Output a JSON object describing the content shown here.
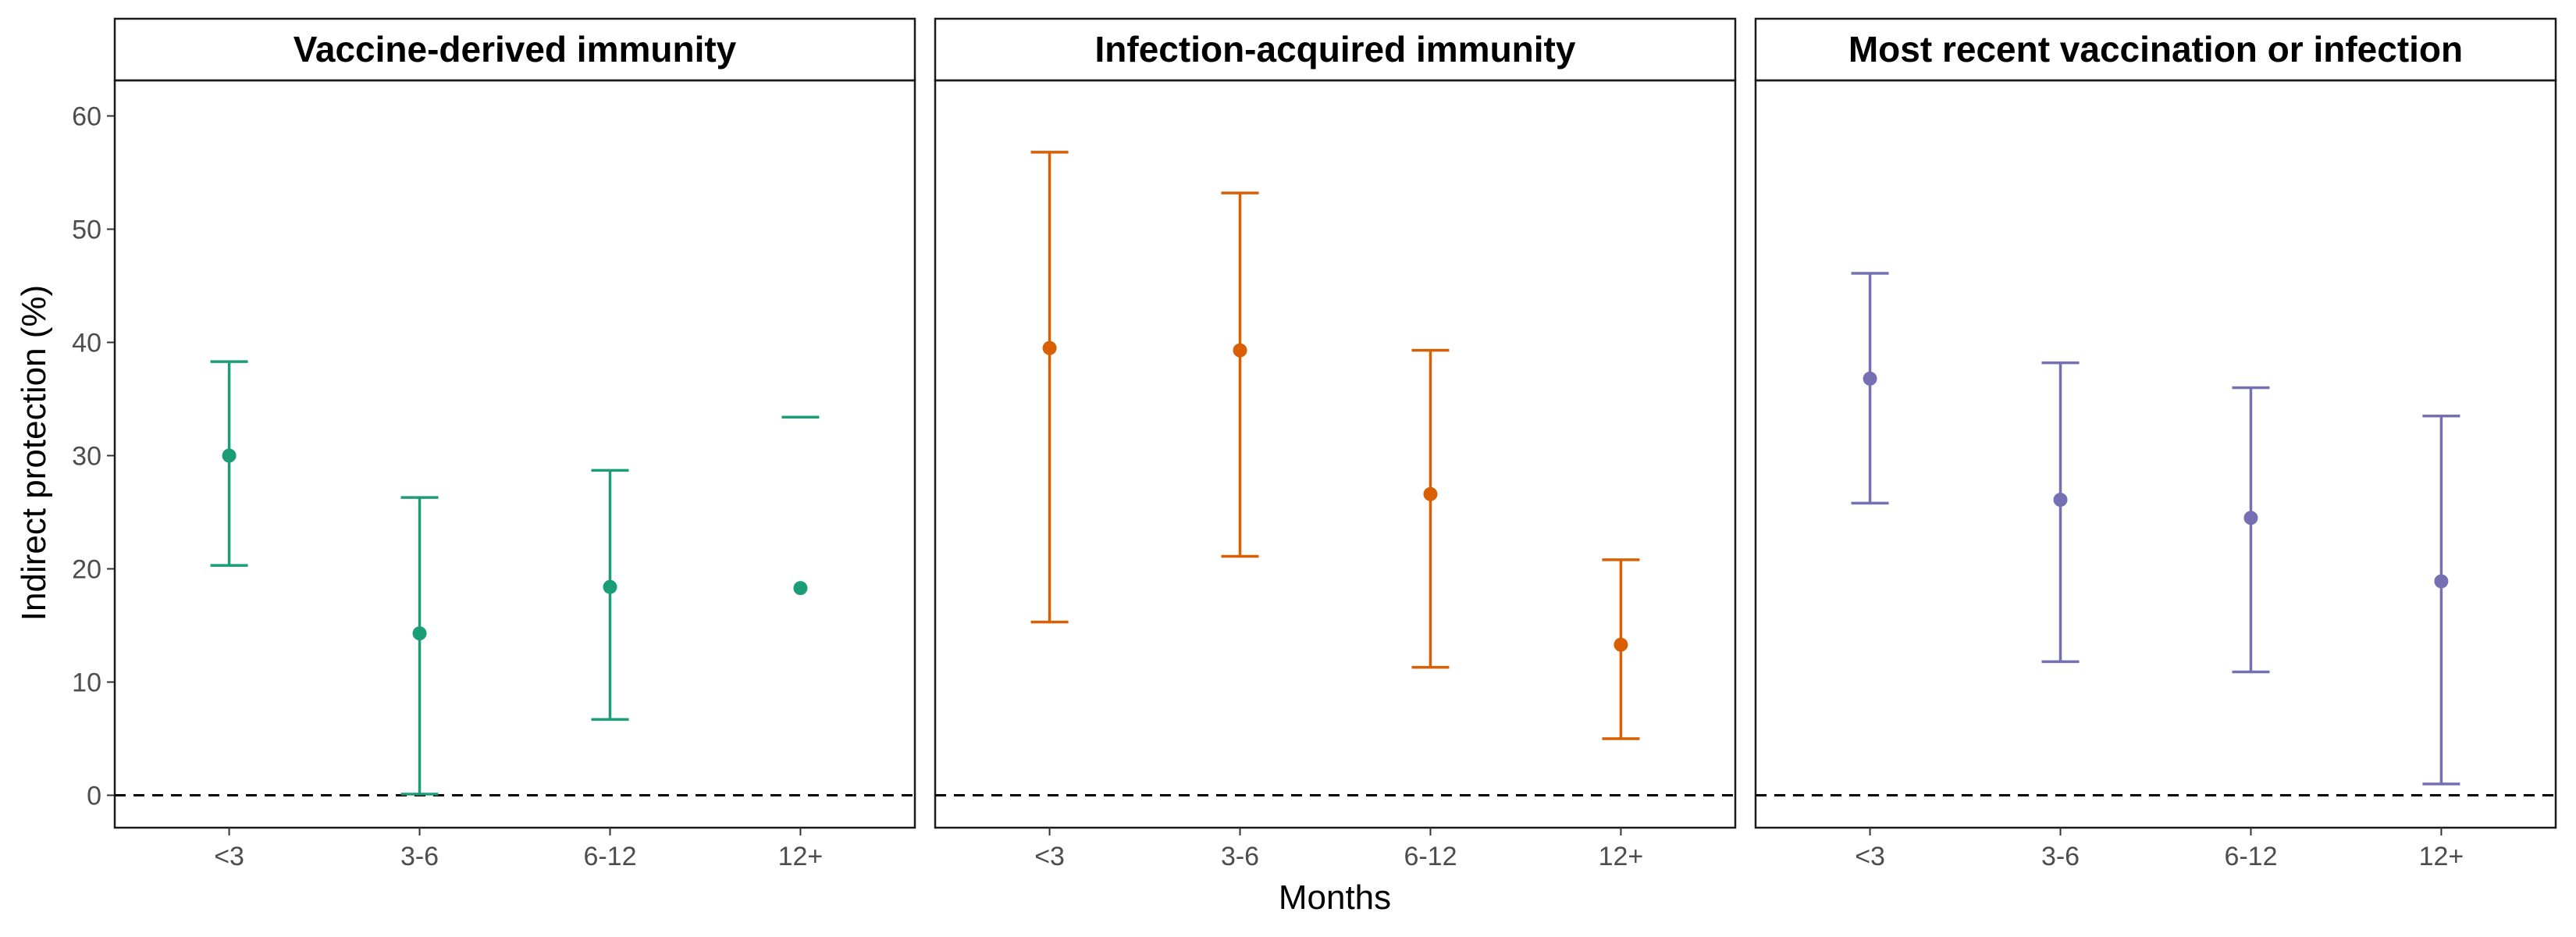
{
  "chart_data": {
    "type": "scatter",
    "xlabel": "Months",
    "ylabel": "Indirect protection (%)",
    "categories": [
      "<3",
      "3-6",
      "6-12",
      "12+"
    ],
    "ylim": [
      -3,
      68
    ],
    "yticks": [
      0,
      10,
      20,
      30,
      40,
      50,
      60
    ],
    "reference_line": 0,
    "grid": false,
    "panels": [
      {
        "title": "Vaccine-derived immunity",
        "color": "#1b9e77",
        "estimates": [
          30.0,
          14.3,
          18.4,
          18.3
        ],
        "lower": [
          20.3,
          0.1,
          6.7,
          null
        ],
        "upper": [
          38.3,
          26.3,
          28.7,
          33.4
        ]
      },
      {
        "title": "Infection-acquired immunity",
        "color": "#d95f02",
        "estimates": [
          39.5,
          39.3,
          26.6,
          13.3
        ],
        "lower": [
          15.3,
          21.1,
          11.3,
          5.0
        ],
        "upper": [
          56.8,
          53.2,
          39.3,
          20.8
        ]
      },
      {
        "title": "Most recent vaccination or infection",
        "color": "#7570b3",
        "estimates": [
          36.8,
          26.1,
          24.5,
          18.9
        ],
        "lower": [
          25.8,
          11.8,
          10.9,
          1.0
        ],
        "upper": [
          46.1,
          38.2,
          36.0,
          33.5
        ]
      }
    ]
  }
}
